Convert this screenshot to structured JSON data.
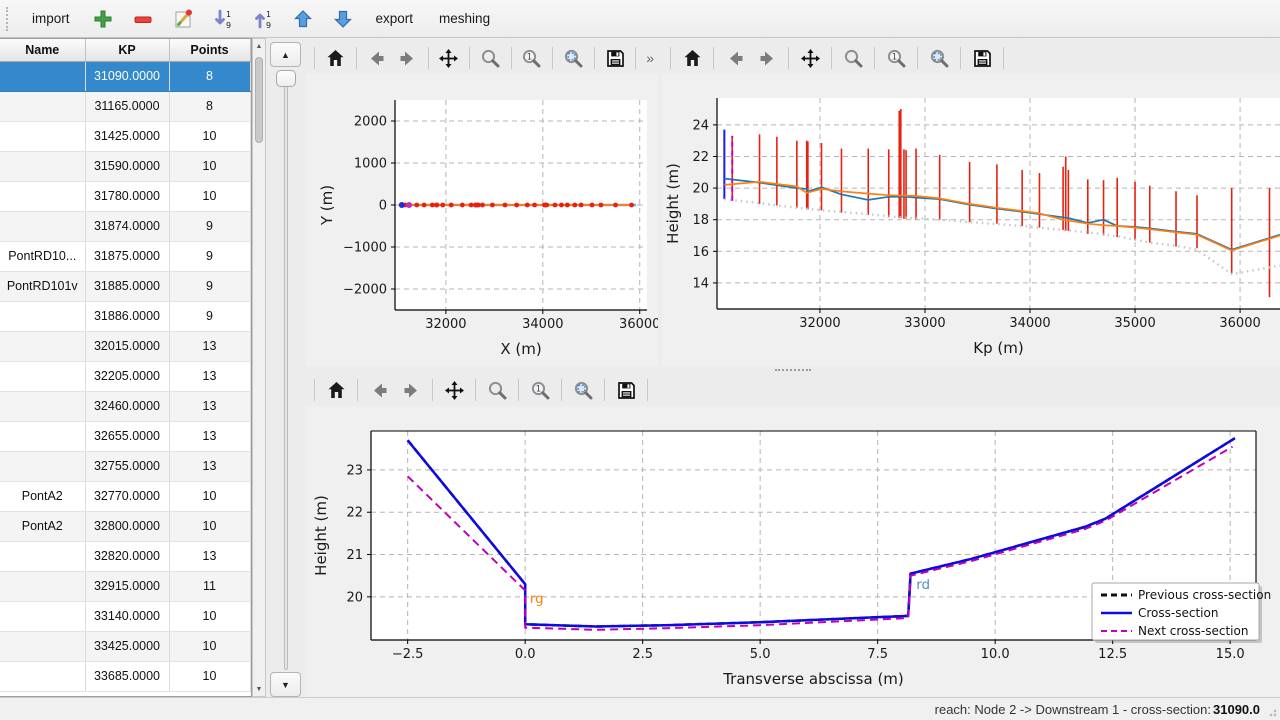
{
  "app_toolbar": {
    "import_label": "import",
    "export_label": "export",
    "meshing_label": "meshing",
    "icons": [
      "add-icon",
      "remove-icon",
      "edit-icon",
      "sort-descending-icon",
      "sort-ascending-icon",
      "move-up-icon",
      "move-down-icon"
    ]
  },
  "nav_toolbar": {
    "icons": [
      "home",
      "back",
      "forward",
      "pan",
      "zoom",
      "zoom-in",
      "zoom-to-rect",
      "save"
    ],
    "overflow_label": "»"
  },
  "table": {
    "columns": [
      "Name",
      "KP",
      "Points"
    ],
    "selected_index": 0,
    "rows": [
      {
        "name": "",
        "kp": "31090.0000",
        "points": "8"
      },
      {
        "name": "",
        "kp": "31165.0000",
        "points": "8"
      },
      {
        "name": "",
        "kp": "31425.0000",
        "points": "10"
      },
      {
        "name": "",
        "kp": "31590.0000",
        "points": "10"
      },
      {
        "name": "",
        "kp": "31780.0000",
        "points": "10"
      },
      {
        "name": "",
        "kp": "31874.0000",
        "points": "9"
      },
      {
        "name": "PontRD10...",
        "kp": "31875.0000",
        "points": "9"
      },
      {
        "name": "PontRD101v",
        "kp": "31885.0000",
        "points": "9"
      },
      {
        "name": "",
        "kp": "31886.0000",
        "points": "9"
      },
      {
        "name": "",
        "kp": "32015.0000",
        "points": "13"
      },
      {
        "name": "",
        "kp": "32205.0000",
        "points": "13"
      },
      {
        "name": "",
        "kp": "32460.0000",
        "points": "13"
      },
      {
        "name": "",
        "kp": "32655.0000",
        "points": "13"
      },
      {
        "name": "",
        "kp": "32755.0000",
        "points": "13"
      },
      {
        "name": "PontA2",
        "kp": "32770.0000",
        "points": "10"
      },
      {
        "name": "PontA2",
        "kp": "32800.0000",
        "points": "10"
      },
      {
        "name": "",
        "kp": "32820.0000",
        "points": "13"
      },
      {
        "name": "",
        "kp": "32915.0000",
        "points": "11"
      },
      {
        "name": "",
        "kp": "33140.0000",
        "points": "10"
      },
      {
        "name": "",
        "kp": "33425.0000",
        "points": "10"
      },
      {
        "name": "",
        "kp": "33685.0000",
        "points": "10"
      }
    ]
  },
  "status_bar": {
    "label": "reach: Node 2 -> Downstream 1 - cross-section: ",
    "value": "31090.0"
  },
  "colors": {
    "selection": "#3389cb",
    "orange": "#ff7f0e",
    "series_blue": "#1f77b4",
    "cross_blue": "#0b0bdf",
    "next_magenta": "#bf00bf",
    "red": "#e82010",
    "thalweg_gray": "#c6c6c6",
    "grid": "#b5b5b5"
  },
  "chart_data": [
    {
      "id": "plot-trace",
      "type": "line",
      "xlabel": "X (m)",
      "ylabel": "Y (m)",
      "xlim": [
        30950,
        36150
      ],
      "ylim": [
        -2500,
        2500
      ],
      "xticks": [
        [
          32000,
          "32000"
        ],
        [
          34000,
          "34000"
        ],
        [
          36000,
          "36000"
        ]
      ],
      "yticks": [
        [
          -2000,
          "−2000"
        ],
        [
          -1000,
          "−1000"
        ],
        [
          0,
          "0"
        ],
        [
          1000,
          "1000"
        ],
        [
          2000,
          "2000"
        ]
      ],
      "spines": [
        "left",
        "bottom"
      ],
      "series": [
        {
          "name": "river-axis-underlay",
          "color": "#7aa6d2",
          "width": 2.6,
          "points": [
            [
              31090,
              0
            ],
            [
              35920,
              0
            ]
          ]
        },
        {
          "name": "river-axis-overflow",
          "color": "#c9c9c9",
          "width": 2,
          "dash": "2 4",
          "points": [
            [
              35830,
              0
            ],
            [
              36070,
              0
            ]
          ]
        },
        {
          "name": "river-axis",
          "color": "#ff7f0e",
          "width": 1.8,
          "points": [
            [
              31150,
              0
            ],
            [
              35830,
              0
            ]
          ]
        }
      ],
      "markers": [
        {
          "name": "cross-section-positions",
          "color": "#e82010",
          "y": 0,
          "r": 2.4,
          "x": [
            31160,
            31400,
            31550,
            31720,
            31805,
            31815,
            31935,
            32110,
            32340,
            32520,
            32610,
            32625,
            32650,
            32670,
            32755,
            32960,
            33220,
            33460,
            33680,
            33830,
            34035,
            34055,
            34080,
            34250,
            34385,
            34505,
            34660,
            34790,
            35015,
            35200,
            35500,
            35830
          ]
        },
        {
          "name": "current-cross-section-position",
          "color": "#2a2ad4",
          "y": 0,
          "r": 3,
          "x": [
            31090
          ]
        },
        {
          "name": "next-cross-section-position",
          "color": "#b830c8",
          "y": 0,
          "r": 3,
          "x": [
            31240
          ]
        }
      ]
    },
    {
      "id": "plot-profile",
      "type": "line",
      "xlabel": "Kp (m)",
      "ylabel": "Height (m)",
      "xlim": [
        31020,
        36380
      ],
      "ylim": [
        12.35,
        25.7
      ],
      "xticks": [
        [
          32000,
          "32000"
        ],
        [
          33000,
          "33000"
        ],
        [
          34000,
          "34000"
        ],
        [
          35000,
          "35000"
        ],
        [
          36000,
          "36000"
        ]
      ],
      "yticks": [
        [
          14,
          "14"
        ],
        [
          16,
          "16"
        ],
        [
          18,
          "18"
        ],
        [
          20,
          "20"
        ],
        [
          22,
          "22"
        ],
        [
          24,
          "24"
        ]
      ],
      "spines": [
        "left",
        "bottom"
      ],
      "section_color": "#e82010",
      "sections": [
        [
          31165,
          19.2,
          23.3
        ],
        [
          31425,
          19.0,
          23.4
        ],
        [
          31590,
          18.9,
          23.25
        ],
        [
          31780,
          18.75,
          23.0
        ],
        [
          31874,
          18.7,
          23.0
        ],
        [
          31885,
          18.65,
          22.95
        ],
        [
          32015,
          18.6,
          22.85
        ],
        [
          32205,
          18.45,
          22.5
        ],
        [
          32460,
          18.3,
          22.5
        ],
        [
          32655,
          18.15,
          22.45
        ],
        [
          32755,
          18.1,
          24.9
        ],
        [
          32770,
          18.1,
          25.0
        ],
        [
          32800,
          18.05,
          22.45
        ],
        [
          32820,
          18.05,
          22.4
        ],
        [
          32915,
          18.0,
          22.5
        ],
        [
          33140,
          18.0,
          22.1
        ],
        [
          33425,
          17.85,
          21.65
        ],
        [
          33685,
          17.75,
          21.5
        ],
        [
          33925,
          17.6,
          21.15
        ],
        [
          34090,
          17.5,
          20.95
        ],
        [
          34315,
          17.35,
          21.35
        ],
        [
          34340,
          17.3,
          22.0
        ],
        [
          34365,
          17.3,
          21.15
        ],
        [
          34550,
          17.1,
          20.55
        ],
        [
          34700,
          17.0,
          20.5
        ],
        [
          34830,
          16.9,
          20.65
        ],
        [
          35000,
          16.7,
          20.4
        ],
        [
          35140,
          16.55,
          20.15
        ],
        [
          35390,
          16.3,
          19.8
        ],
        [
          35590,
          16.2,
          19.55
        ],
        [
          35920,
          14.6,
          20.0
        ],
        [
          36280,
          13.1,
          20.0
        ]
      ],
      "vlines": [
        {
          "name": "current-cross-section-marker",
          "x": 31090,
          "y0": 19.3,
          "y1": 23.7,
          "color": "#1a1aee",
          "width": 2
        },
        {
          "name": "next-cross-section-marker",
          "x": 31165,
          "y0": 19.2,
          "y1": 23.3,
          "color": "#cc00cc",
          "width": 2,
          "dash": "5 4"
        }
      ],
      "series": [
        {
          "name": "left-bank",
          "color": "#1f77b4",
          "width": 1.7,
          "points": [
            [
              31090,
              20.6
            ],
            [
              31425,
              20.35
            ],
            [
              31780,
              20.0
            ],
            [
              31874,
              19.95
            ],
            [
              31886,
              19.8
            ],
            [
              32015,
              20.05
            ],
            [
              32205,
              19.6
            ],
            [
              32460,
              19.25
            ],
            [
              32655,
              19.45
            ],
            [
              32820,
              19.45
            ],
            [
              32915,
              19.4
            ],
            [
              33140,
              19.3
            ],
            [
              33425,
              18.95
            ],
            [
              33685,
              18.7
            ],
            [
              33925,
              18.5
            ],
            [
              34090,
              18.35
            ],
            [
              34315,
              18.15
            ],
            [
              34365,
              18.1
            ],
            [
              34550,
              17.8
            ],
            [
              34700,
              18.0
            ],
            [
              34830,
              17.6
            ],
            [
              35000,
              17.55
            ],
            [
              35140,
              17.45
            ],
            [
              35390,
              17.25
            ],
            [
              35590,
              17.1
            ],
            [
              35920,
              16.1
            ],
            [
              36380,
              17.05
            ]
          ]
        },
        {
          "name": "right-bank",
          "color": "#ff7f0e",
          "width": 1.7,
          "points": [
            [
              31090,
              20.2
            ],
            [
              31425,
              20.4
            ],
            [
              31780,
              20.1
            ],
            [
              31874,
              19.7
            ],
            [
              32015,
              19.95
            ],
            [
              32205,
              19.8
            ],
            [
              32460,
              19.65
            ],
            [
              32655,
              19.55
            ],
            [
              32915,
              19.5
            ],
            [
              33140,
              19.35
            ],
            [
              33425,
              19.0
            ],
            [
              33685,
              18.75
            ],
            [
              33925,
              18.55
            ],
            [
              34090,
              18.4
            ],
            [
              34315,
              18.0
            ],
            [
              34550,
              17.75
            ],
            [
              34700,
              17.65
            ],
            [
              34830,
              17.6
            ],
            [
              35000,
              17.5
            ],
            [
              35140,
              17.4
            ],
            [
              35390,
              17.2
            ],
            [
              35590,
              17.05
            ],
            [
              35920,
              16.05
            ],
            [
              36380,
              17.0
            ]
          ]
        },
        {
          "name": "thalweg",
          "color": "#c6c6c6",
          "width": 2.4,
          "dash": "1.5 4",
          "points": [
            [
              31090,
              19.3
            ],
            [
              31425,
              19.05
            ],
            [
              31780,
              18.75
            ],
            [
              32015,
              18.6
            ],
            [
              32460,
              18.35
            ],
            [
              32755,
              18.15
            ],
            [
              33140,
              18.0
            ],
            [
              33425,
              17.85
            ],
            [
              33925,
              17.6
            ],
            [
              34315,
              17.35
            ],
            [
              34550,
              17.2
            ],
            [
              34830,
              16.95
            ],
            [
              35140,
              16.55
            ],
            [
              35390,
              16.35
            ],
            [
              35590,
              16.1
            ],
            [
              35920,
              14.55
            ],
            [
              36380,
              15.1
            ]
          ]
        }
      ]
    },
    {
      "id": "plot-cross-section",
      "type": "line",
      "xlabel": "Transverse abscissa (m)",
      "ylabel": "Height (m)",
      "xlim": [
        -3.28,
        15.55
      ],
      "ylim": [
        18.98,
        23.92
      ],
      "xticks": [
        [
          -2.5,
          "−2.5"
        ],
        [
          0,
          "0.0"
        ],
        [
          2.5,
          "2.5"
        ],
        [
          5,
          "5.0"
        ],
        [
          7.5,
          "7.5"
        ],
        [
          10,
          "10.0"
        ],
        [
          12.5,
          "12.5"
        ],
        [
          15,
          "15.0"
        ]
      ],
      "yticks": [
        [
          20,
          "20"
        ],
        [
          21,
          "21"
        ],
        [
          22,
          "22"
        ],
        [
          23,
          "23"
        ]
      ],
      "spines": [
        "left",
        "bottom",
        "top",
        "right"
      ],
      "series": [
        {
          "name": "previous-cross-section",
          "color": "#111111",
          "width": 2.5,
          "dash": "7 4",
          "points": [
            [
              -2.5,
              23.7
            ],
            [
              0,
              20.3
            ],
            [
              0,
              19.35
            ],
            [
              1.5,
              19.3
            ],
            [
              3,
              19.33
            ],
            [
              5,
              19.4
            ],
            [
              8.15,
              19.55
            ],
            [
              8.2,
              20.55
            ],
            [
              9.5,
              20.9
            ],
            [
              11.9,
              21.65
            ],
            [
              12.35,
              21.85
            ],
            [
              15.1,
              23.75
            ]
          ]
        },
        {
          "name": "cross-section",
          "color": "#0b0bdf",
          "width": 2.5,
          "points": [
            [
              -2.5,
              23.7
            ],
            [
              0,
              20.3
            ],
            [
              0,
              19.35
            ],
            [
              1.5,
              19.3
            ],
            [
              3,
              19.33
            ],
            [
              5,
              19.4
            ],
            [
              8.15,
              19.55
            ],
            [
              8.2,
              20.55
            ],
            [
              9.5,
              20.9
            ],
            [
              11.9,
              21.65
            ],
            [
              12.35,
              21.85
            ],
            [
              15.1,
              23.75
            ]
          ]
        },
        {
          "name": "next-cross-section",
          "color": "#bf00bf",
          "width": 2,
          "dash": "8 5",
          "points": [
            [
              -2.5,
              22.85
            ],
            [
              0,
              20.15
            ],
            [
              0,
              19.27
            ],
            [
              1.5,
              19.22
            ],
            [
              3,
              19.26
            ],
            [
              5,
              19.33
            ],
            [
              8.15,
              19.5
            ],
            [
              8.2,
              20.5
            ],
            [
              9.5,
              20.85
            ],
            [
              11.9,
              21.6
            ],
            [
              12.35,
              21.8
            ],
            [
              15.05,
              23.55
            ]
          ]
        }
      ],
      "labels": [
        {
          "text": "rg",
          "x": 0.1,
          "y": 19.85,
          "color": "#ff7f0e"
        },
        {
          "text": "rd",
          "x": 8.32,
          "y": 20.18,
          "color": "#4a90c8"
        }
      ],
      "legend": {
        "entries": [
          {
            "label": "Previous cross-section",
            "color": "#111111",
            "dash": "6 4",
            "width": 3
          },
          {
            "label": "Cross-section",
            "color": "#0b0bdf",
            "width": 2.5
          },
          {
            "label": "Next cross-section",
            "color": "#bf00bf",
            "dash": "6 4",
            "width": 2
          }
        ]
      }
    }
  ]
}
